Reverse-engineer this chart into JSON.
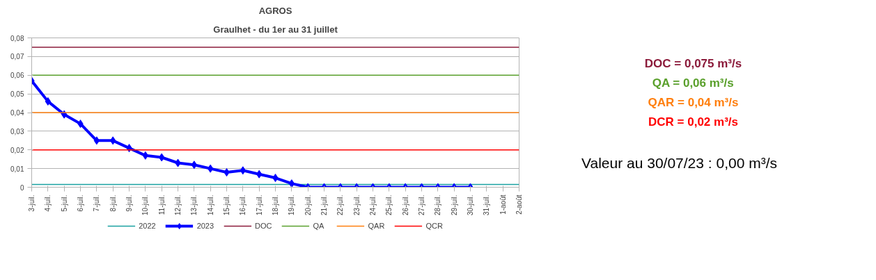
{
  "chart_data": {
    "type": "line",
    "title": "AGROS",
    "subtitle": "Graulhet - du 1er au 31 juillet",
    "categories": [
      "3-juil.",
      "4-juil.",
      "5-juil.",
      "6-juil.",
      "7-juil.",
      "8-juil.",
      "9-juil.",
      "10-juil.",
      "11-juil.",
      "12-juil.",
      "13-juil.",
      "14-juil.",
      "15-juil.",
      "16-juil.",
      "17-juil.",
      "18-juil.",
      "19-juil.",
      "20-juil.",
      "21-juil.",
      "22-juil.",
      "23-juil.",
      "24-juil.",
      "25-juil.",
      "26-juil.",
      "27-juil.",
      "28-juil.",
      "29-juil.",
      "30-juil.",
      "31-juil.",
      "1-août",
      "2-août"
    ],
    "series": [
      {
        "name": "2022",
        "color": "#1aa1a1",
        "marker": "none",
        "values": [
          0.0015,
          0.0015,
          0.0015,
          0.0015,
          0.0015,
          0.0015,
          0.0015,
          0.0015,
          0.0015,
          0.0015,
          0.0015,
          0.0015,
          0.0015,
          0.0015,
          0.0015,
          0.0015,
          0.0015,
          0.0015,
          0.0015,
          0.0015,
          0.0015,
          0.0015,
          0.0015,
          0.0015,
          0.0015,
          0.0015,
          0.0015,
          0.0015,
          0.0015,
          0.0015,
          0.0015
        ]
      },
      {
        "name": "2023",
        "color": "#0000ff",
        "marker": "diamond",
        "values": [
          0.057,
          0.046,
          0.039,
          0.034,
          0.025,
          0.025,
          0.021,
          0.017,
          0.016,
          0.013,
          0.012,
          0.01,
          0.008,
          0.009,
          0.007,
          0.005,
          0.002,
          0,
          0,
          0,
          0,
          0,
          0,
          0,
          0,
          0,
          0,
          0,
          null,
          null,
          null
        ]
      },
      {
        "name": "DOC",
        "color": "#8b1a3a",
        "marker": "none",
        "values": [
          0.075,
          0.075,
          0.075,
          0.075,
          0.075,
          0.075,
          0.075,
          0.075,
          0.075,
          0.075,
          0.075,
          0.075,
          0.075,
          0.075,
          0.075,
          0.075,
          0.075,
          0.075,
          0.075,
          0.075,
          0.075,
          0.075,
          0.075,
          0.075,
          0.075,
          0.075,
          0.075,
          0.075,
          0.075,
          0.075,
          0.075
        ]
      },
      {
        "name": "QA",
        "color": "#5aa02c",
        "marker": "none",
        "values": [
          0.06,
          0.06,
          0.06,
          0.06,
          0.06,
          0.06,
          0.06,
          0.06,
          0.06,
          0.06,
          0.06,
          0.06,
          0.06,
          0.06,
          0.06,
          0.06,
          0.06,
          0.06,
          0.06,
          0.06,
          0.06,
          0.06,
          0.06,
          0.06,
          0.06,
          0.06,
          0.06,
          0.06,
          0.06,
          0.06,
          0.06
        ]
      },
      {
        "name": "QAR",
        "color": "#ff7f0e",
        "marker": "none",
        "values": [
          0.04,
          0.04,
          0.04,
          0.04,
          0.04,
          0.04,
          0.04,
          0.04,
          0.04,
          0.04,
          0.04,
          0.04,
          0.04,
          0.04,
          0.04,
          0.04,
          0.04,
          0.04,
          0.04,
          0.04,
          0.04,
          0.04,
          0.04,
          0.04,
          0.04,
          0.04,
          0.04,
          0.04,
          0.04,
          0.04,
          0.04
        ]
      },
      {
        "name": "QCR",
        "color": "#ff0000",
        "marker": "none",
        "values": [
          0.02,
          0.02,
          0.02,
          0.02,
          0.02,
          0.02,
          0.02,
          0.02,
          0.02,
          0.02,
          0.02,
          0.02,
          0.02,
          0.02,
          0.02,
          0.02,
          0.02,
          0.02,
          0.02,
          0.02,
          0.02,
          0.02,
          0.02,
          0.02,
          0.02,
          0.02,
          0.02,
          0.02,
          0.02,
          0.02,
          0.02
        ]
      }
    ],
    "ylim": [
      0,
      0.08
    ],
    "yticks": [
      0,
      {
        "value": 0.01,
        "label": "0,01"
      },
      {
        "value": 0.02,
        "label": "0,02"
      },
      {
        "value": 0.03,
        "label": "0,03"
      },
      {
        "value": 0.04,
        "label": "0,04"
      },
      {
        "value": 0.05,
        "label": "0,05"
      },
      {
        "value": 0.06,
        "label": "0,06"
      },
      {
        "value": 0.07,
        "label": "0,07"
      },
      {
        "value": 0.08,
        "label": "0,08"
      }
    ],
    "grid": "y",
    "legend": "bottom",
    "annotations": [
      "DOC = 0,075 m³/s",
      "QA = 0,06 m³/s",
      "QAR = 0,04 m³/s",
      "DCR = 0,02 m³/s",
      "Valeur au 30/07/23 : 0,00 m³/s"
    ]
  }
}
